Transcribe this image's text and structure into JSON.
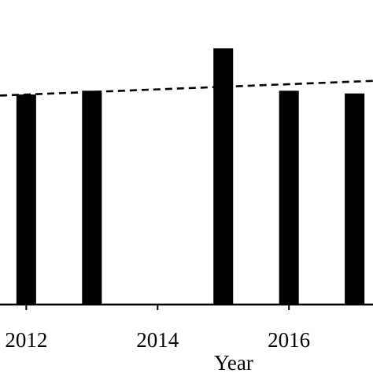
{
  "chart_data": {
    "type": "bar",
    "title": "",
    "xlabel": "Year",
    "ylabel": "",
    "x": [
      2012,
      2013,
      2015,
      2016,
      2017
    ],
    "values": [
      100,
      101.8,
      122,
      101.8,
      100.5
    ],
    "xlim": [
      2011.6,
      2017.28
    ],
    "ylim": [
      0,
      145
    ],
    "x_ticks": [
      2012,
      2014,
      2016
    ],
    "x_tick_labels": [
      "2012",
      "2014",
      "2016"
    ],
    "trendline": {
      "style": "dashed",
      "x": [
        2011.6,
        2017.28
      ],
      "y": [
        99.5,
        106.5
      ]
    },
    "bar_color": "#000000",
    "grid": false,
    "legend": "none"
  }
}
